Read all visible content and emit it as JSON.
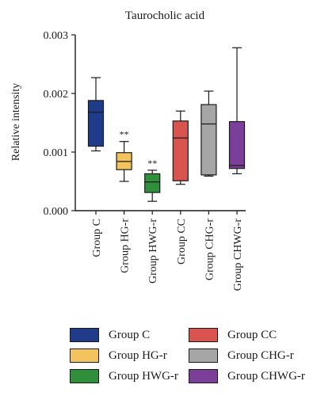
{
  "chart_data": {
    "type": "box",
    "title": "Taurocholic acid",
    "ylabel": "Relative intensity",
    "xlabel": "",
    "ylim": [
      0,
      0.003
    ],
    "yticks": [
      "0.000",
      "0.001",
      "0.002",
      "0.003"
    ],
    "grid": false,
    "legend_placement": "bottom",
    "categories": [
      "Group C",
      "Group HG-r",
      "Group HWG-r",
      "Group CC",
      "Group CHG-r",
      "Group CHWG-r"
    ],
    "boxes": [
      {
        "name": "Group C",
        "min": 0.00102,
        "q1": 0.0011,
        "median": 0.00168,
        "q3": 0.00188,
        "max": 0.00227,
        "color": "#1f3b8a",
        "significance": ""
      },
      {
        "name": "Group HG-r",
        "min": 0.0005,
        "q1": 0.0007,
        "median": 0.00084,
        "q3": 0.00099,
        "max": 0.00118,
        "color": "#f3c45e",
        "significance": "**"
      },
      {
        "name": "Group HWG-r",
        "min": 0.00016,
        "q1": 0.00031,
        "median": 0.00049,
        "q3": 0.00063,
        "max": 0.00069,
        "color": "#2f8f3a",
        "significance": "**"
      },
      {
        "name": "Group CC",
        "min": 0.00045,
        "q1": 0.00051,
        "median": 0.00124,
        "q3": 0.00153,
        "max": 0.0017,
        "color": "#d9534f",
        "significance": ""
      },
      {
        "name": "Group CHG-r",
        "min": 0.00059,
        "q1": 0.00061,
        "median": 0.00148,
        "q3": 0.00181,
        "max": 0.00204,
        "color": "#a6a6a6",
        "significance": ""
      },
      {
        "name": "Group CHWG-r",
        "min": 0.00063,
        "q1": 0.00072,
        "median": 0.00077,
        "q3": 0.00152,
        "max": 0.00278,
        "color": "#7b3f99",
        "significance": ""
      }
    ]
  },
  "legend": [
    {
      "label": "Group C",
      "color": "#1f3b8a"
    },
    {
      "label": "Group CC",
      "color": "#d9534f"
    },
    {
      "label": "Group HG-r",
      "color": "#f3c45e"
    },
    {
      "label": "Group CHG-r",
      "color": "#a6a6a6"
    },
    {
      "label": "Group HWG-r",
      "color": "#2f8f3a"
    },
    {
      "label": "Group CHWG-r",
      "color": "#7b3f99"
    }
  ]
}
